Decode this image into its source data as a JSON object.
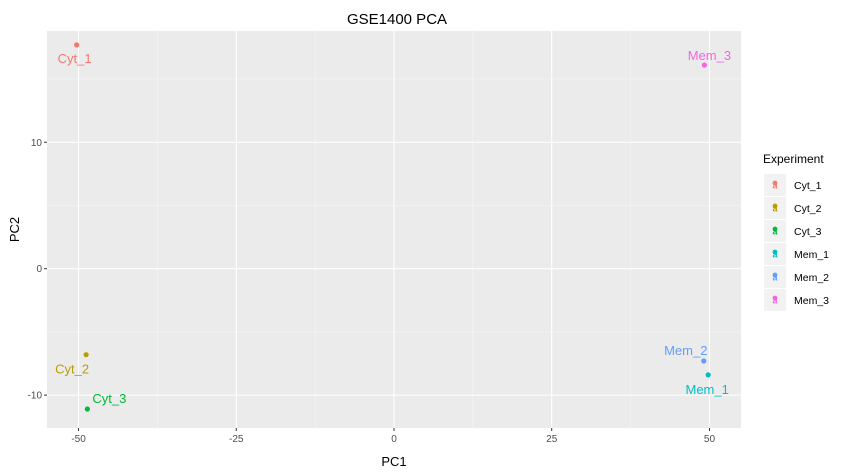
{
  "chart_data": {
    "type": "scatter",
    "title": "GSE1400 PCA",
    "xlabel": "PC1",
    "ylabel": "PC2",
    "xlim": [
      -55,
      55
    ],
    "ylim": [
      -12.6,
      18.8
    ],
    "x_ticks": [
      -50,
      -25,
      0,
      25,
      50
    ],
    "x_tick_labels": [
      "-50",
      "-25",
      "0",
      "25",
      "50"
    ],
    "y_ticks": [
      -10,
      0,
      10
    ],
    "y_tick_labels": [
      "-10",
      "0",
      "10"
    ],
    "grid": true,
    "legend": {
      "title": "Experiment",
      "position": "right"
    },
    "points": [
      {
        "name": "Cyt_1",
        "x": -50.3,
        "y": 17.7,
        "color": "#F8766D"
      },
      {
        "name": "Cyt_2",
        "x": -48.8,
        "y": -6.8,
        "color": "#B79F00"
      },
      {
        "name": "Cyt_3",
        "x": -48.6,
        "y": -11.1,
        "color": "#00BA38"
      },
      {
        "name": "Mem_1",
        "x": 49.8,
        "y": -8.4,
        "color": "#00BFC4"
      },
      {
        "name": "Mem_2",
        "x": 49.1,
        "y": -7.3,
        "color": "#619CFF"
      },
      {
        "name": "Mem_3",
        "x": 49.2,
        "y": 16.1,
        "color": "#F564E3"
      }
    ]
  }
}
